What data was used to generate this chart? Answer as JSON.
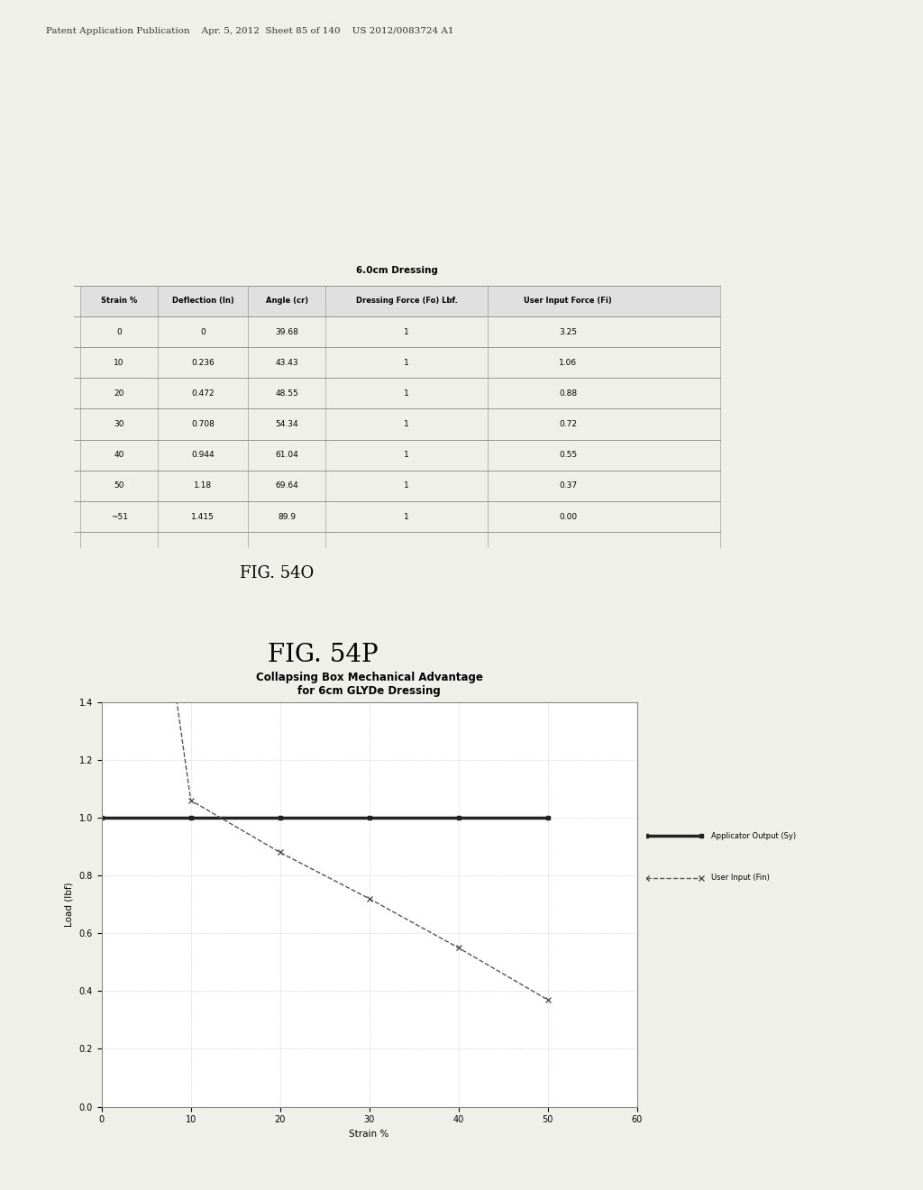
{
  "page_header": "Patent Application Publication    Apr. 5, 2012  Sheet 85 of 140    US 2012/0083724 A1",
  "table_title": "6.0cm Dressing",
  "table_headers": [
    "Strain %",
    "Deflection (In)",
    "Angle (cr)",
    "Dressing Force (Fo) Lbf.",
    "User Input Force (Fi)"
  ],
  "table_data": [
    [
      "0",
      "0",
      "39.68",
      "1",
      "3.25"
    ],
    [
      "10",
      "0.236",
      "43.43",
      "1",
      "1.06"
    ],
    [
      "20",
      "0.472",
      "48.55",
      "1",
      "0.88"
    ],
    [
      "30",
      "0.708",
      "54.34",
      "1",
      "0.72"
    ],
    [
      "40",
      "0.944",
      "61.04",
      "1",
      "0.55"
    ],
    [
      "50",
      "1.18",
      "69.64",
      "1",
      "0.37"
    ],
    [
      "~51",
      "1.415",
      "89.9",
      "1",
      "0.00"
    ]
  ],
  "fig_label_top": "FIG. 54O",
  "fig_label_bottom": "FIG. 54P",
  "chart_title_line1": "Collapsing Box Mechanical Advantage",
  "chart_title_line2": "for 6cm GLYDe Dressing",
  "chart_xlabel": "Strain %",
  "chart_ylabel": "Load (lbf)",
  "strain_x": [
    0,
    10,
    20,
    30,
    40,
    50
  ],
  "applicator_output": [
    1,
    1,
    1,
    1,
    1,
    1
  ],
  "user_input": [
    3.25,
    1.06,
    0.88,
    0.72,
    0.55,
    0.37
  ],
  "xlim": [
    0,
    60
  ],
  "ylim": [
    0,
    1.4
  ],
  "yticks": [
    0,
    0.2,
    0.4,
    0.6,
    0.8,
    1.0,
    1.2,
    1.4
  ],
  "xticks": [
    0,
    10,
    20,
    30,
    40,
    50,
    60
  ],
  "legend_applicator": "Applicator Output (Sy)",
  "legend_user": "User Input (Fin)",
  "bg_color": "#f0f0eb",
  "chart_bg": "#ffffff",
  "grid_color": "#aaaaaa",
  "applicator_color": "#222222",
  "user_input_color": "#555555"
}
